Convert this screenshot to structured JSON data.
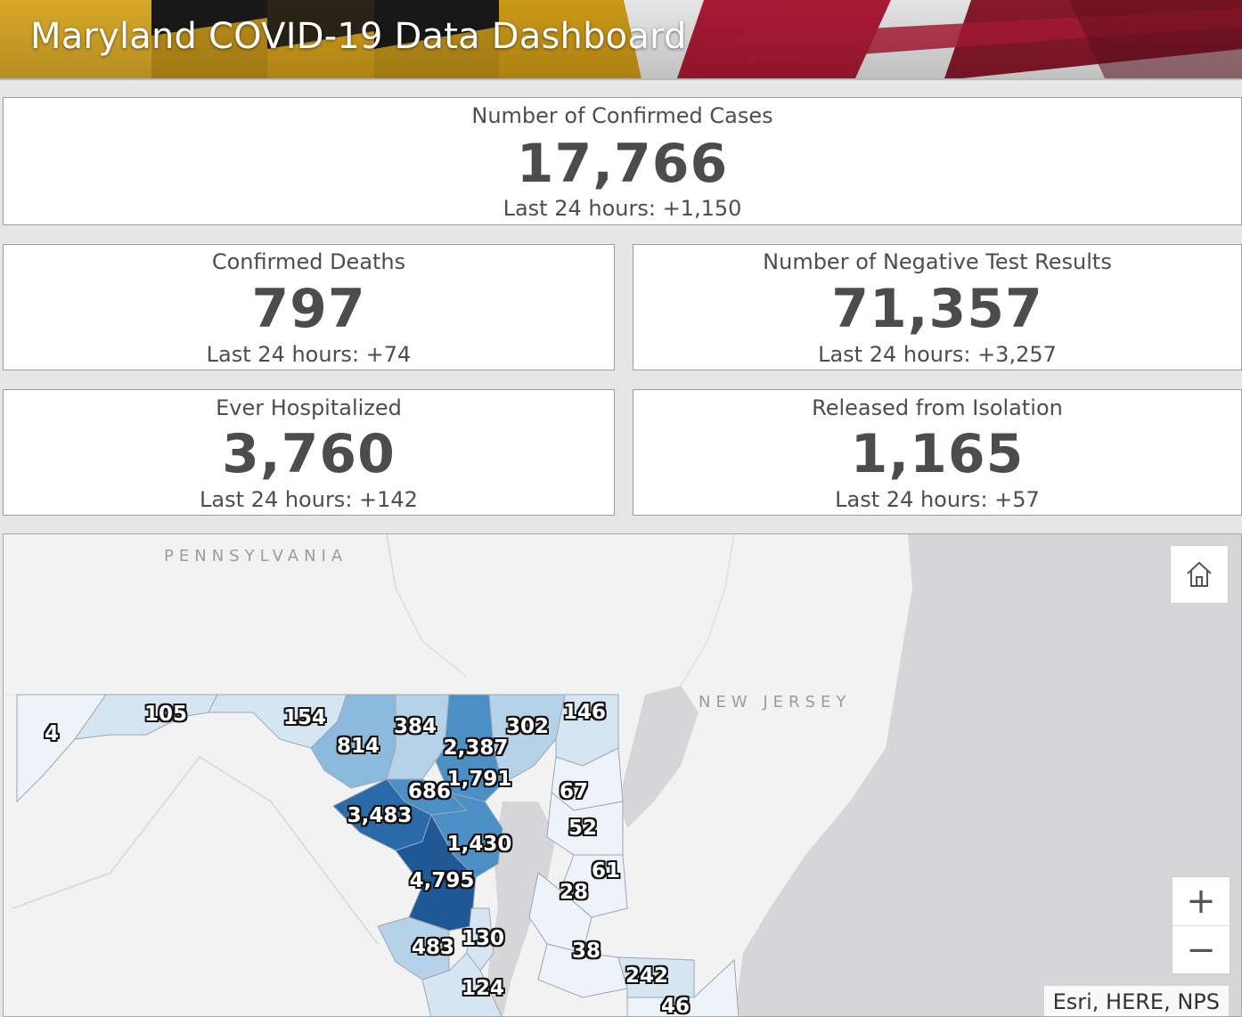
{
  "header": {
    "title": "Maryland COVID-19 Data Dashboard"
  },
  "stats": {
    "confirmed_cases": {
      "label": "Number of Confirmed Cases",
      "value": "17,766",
      "delta": "Last 24 hours: +1,150"
    },
    "deaths": {
      "label": "Confirmed Deaths",
      "value": "797",
      "delta": "Last 24 hours: +74"
    },
    "negative_tests": {
      "label": "Number of Negative Test Results",
      "value": "71,357",
      "delta": "Last 24 hours: +3,257"
    },
    "hospitalized": {
      "label": "Ever Hospitalized",
      "value": "3,760",
      "delta": "Last 24 hours: +142"
    },
    "released": {
      "label": "Released from Isolation",
      "value": "1,165",
      "delta": "Last 24 hours: +57"
    }
  },
  "map": {
    "state_labels": {
      "pennsylvania": "PENNSYLVANIA",
      "new_jersey": "NEW JERSEY"
    },
    "county_counts": [
      "4",
      "105",
      "154",
      "814",
      "384",
      "2,387",
      "302",
      "146",
      "1,791",
      "686",
      "3,483",
      "67",
      "52",
      "1,430",
      "61",
      "28",
      "4,795",
      "483",
      "130",
      "38",
      "242",
      "124",
      "46"
    ],
    "colors": {
      "lightest": "#eef3fa",
      "light": "#d6e5f2",
      "mid_light": "#b5d2e8",
      "mid": "#8cbadc",
      "mid_dark": "#4a90c4",
      "dark": "#2a6aa8",
      "darkest": "#1e5896"
    },
    "controls": {
      "home": "home-icon",
      "zoom_in": "+",
      "zoom_out": "−"
    },
    "attribution": "Esri, HERE, NPS"
  }
}
